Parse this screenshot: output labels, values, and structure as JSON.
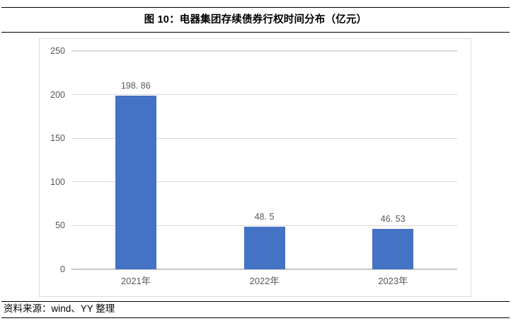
{
  "figure": {
    "title": "图 10：电器集团存续债券行权时间分布（亿元）"
  },
  "source": {
    "text": "资料来源：wind、YY 整理"
  },
  "chart_data": {
    "type": "bar",
    "title": "图 10：电器集团存续债券行权时间分布（亿元）",
    "categories": [
      "2021年",
      "2022年",
      "2023年"
    ],
    "values": [
      198.86,
      48.5,
      46.53
    ],
    "value_labels": [
      "198. 86",
      "48. 5",
      "46. 53"
    ],
    "y_ticks": [
      0,
      50,
      100,
      150,
      200,
      250
    ],
    "ylim": [
      0,
      250
    ],
    "xlabel": "",
    "ylabel": "",
    "grid": true,
    "legend": false,
    "colors": {
      "bar": "#4472c4",
      "gridline": "#d9d9d9",
      "axis_line": "#c6c6c6",
      "tick_label": "#595959",
      "data_label": "#595959"
    }
  }
}
